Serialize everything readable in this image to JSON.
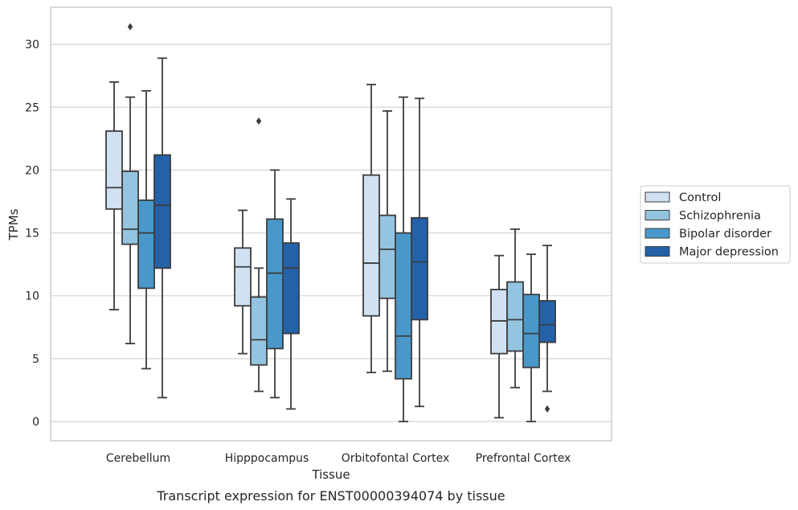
{
  "chart_data": {
    "type": "boxplot",
    "title": "",
    "caption": "Transcript expression for ENST00000394074 by tissue",
    "xlabel": "Tissue",
    "ylabel": "TPMs",
    "ylim": [
      -1.5,
      33
    ],
    "yticks": [
      0,
      5,
      10,
      15,
      20,
      25,
      30
    ],
    "grid": "horizontal",
    "legend_position": "right",
    "categories": [
      "Cerebellum",
      "Hipppocampus",
      "Orbitofontal Cortex",
      "Prefrontal Cortex"
    ],
    "series": [
      {
        "name": "Control",
        "color": "#d0e1f2",
        "boxes": [
          {
            "whisker_low": 8.9,
            "q1": 16.9,
            "median": 18.6,
            "q3": 23.1,
            "whisker_high": 27.0,
            "outliers": []
          },
          {
            "whisker_low": 5.4,
            "q1": 9.2,
            "median": 12.3,
            "q3": 13.8,
            "whisker_high": 16.8,
            "outliers": []
          },
          {
            "whisker_low": 3.9,
            "q1": 8.4,
            "median": 12.6,
            "q3": 19.6,
            "whisker_high": 26.8,
            "outliers": []
          },
          {
            "whisker_low": 0.3,
            "q1": 5.4,
            "median": 8.0,
            "q3": 10.5,
            "whisker_high": 13.2,
            "outliers": []
          }
        ]
      },
      {
        "name": "Schizophrenia",
        "color": "#94c4df",
        "boxes": [
          {
            "whisker_low": 6.2,
            "q1": 14.1,
            "median": 15.3,
            "q3": 19.9,
            "whisker_high": 25.8,
            "outliers": [
              31.4
            ]
          },
          {
            "whisker_low": 2.4,
            "q1": 4.5,
            "median": 6.5,
            "q3": 9.9,
            "whisker_high": 12.2,
            "outliers": [
              23.9
            ]
          },
          {
            "whisker_low": 4.0,
            "q1": 9.8,
            "median": 13.7,
            "q3": 16.4,
            "whisker_high": 24.7,
            "outliers": []
          },
          {
            "whisker_low": 2.7,
            "q1": 5.6,
            "median": 8.1,
            "q3": 11.1,
            "whisker_high": 15.3,
            "outliers": []
          }
        ]
      },
      {
        "name": "Bipolar disorder",
        "color": "#4a98c9",
        "boxes": [
          {
            "whisker_low": 4.2,
            "q1": 10.6,
            "median": 15.0,
            "q3": 17.6,
            "whisker_high": 26.3,
            "outliers": []
          },
          {
            "whisker_low": 1.9,
            "q1": 5.8,
            "median": 11.8,
            "q3": 16.1,
            "whisker_high": 20.0,
            "outliers": []
          },
          {
            "whisker_low": 0.0,
            "q1": 3.4,
            "median": 6.8,
            "q3": 15.0,
            "whisker_high": 25.8,
            "outliers": []
          },
          {
            "whisker_low": 0.0,
            "q1": 4.3,
            "median": 7.0,
            "q3": 10.1,
            "whisker_high": 13.3,
            "outliers": []
          }
        ]
      },
      {
        "name": "Major depression",
        "color": "#2362a8",
        "boxes": [
          {
            "whisker_low": 1.9,
            "q1": 12.2,
            "median": 17.2,
            "q3": 21.2,
            "whisker_high": 28.9,
            "outliers": []
          },
          {
            "whisker_low": 1.0,
            "q1": 7.0,
            "median": 12.2,
            "q3": 14.2,
            "whisker_high": 17.7,
            "outliers": []
          },
          {
            "whisker_low": 1.2,
            "q1": 8.1,
            "median": 12.7,
            "q3": 16.2,
            "whisker_high": 25.7,
            "outliers": []
          },
          {
            "whisker_low": 2.4,
            "q1": 6.3,
            "median": 7.7,
            "q3": 9.6,
            "whisker_high": 14.0,
            "outliers": [
              1.0
            ]
          }
        ]
      }
    ]
  }
}
